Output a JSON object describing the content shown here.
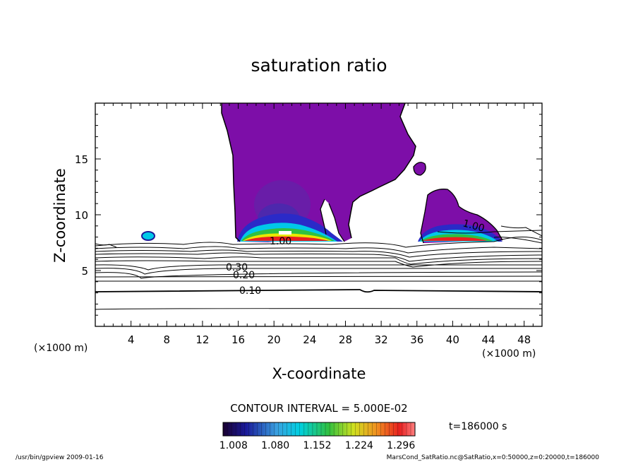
{
  "chart_data": {
    "type": "heatmap",
    "title": "saturation ratio",
    "xlabel": "X-coordinate",
    "ylabel": "Z-coordinate",
    "x_unit": "(×1000 m)",
    "x_unit_right": "(×1000 m)",
    "x_ticks": [
      "4",
      "8",
      "12",
      "16",
      "20",
      "24",
      "28",
      "32",
      "36",
      "40",
      "44",
      "48"
    ],
    "x_tick_values": [
      4,
      8,
      12,
      16,
      20,
      24,
      28,
      32,
      36,
      40,
      44,
      48
    ],
    "y_ticks": [
      "5",
      "10",
      "15"
    ],
    "y_tick_values": [
      5,
      10,
      15
    ],
    "xlim": [
      0,
      50
    ],
    "ylim": [
      0,
      20
    ],
    "contour_interval_text": "CONTOUR INTERVAL = 5.000E-02",
    "contour_labels": [
      {
        "text": "0.10",
        "x": 17.5,
        "y": 3.2
      },
      {
        "text": "0.20",
        "x": 16.5,
        "y": 4.5
      },
      {
        "text": "0.30",
        "x": 15.5,
        "y": 5.2
      },
      {
        "text": "1.00",
        "x": 20.5,
        "y": 7.6
      },
      {
        "text": "1.00",
        "x": 42.3,
        "y": 9.2
      }
    ],
    "colorbar": {
      "labels": [
        "1.008",
        "1.080",
        "1.152",
        "1.224",
        "1.296"
      ],
      "values": [
        1.008,
        1.08,
        1.152,
        1.224,
        1.296
      ],
      "range": [
        0.99,
        1.32
      ]
    },
    "time_text": "t=186000 s"
  },
  "footer": {
    "left": "/usr/bin/gpview   2009-01-16",
    "right": "MarsCond_SatRatio.nc@SatRatio,x=0:50000,z=0:20000,t=186000"
  },
  "colors": {
    "supersaturated_fill": "#7d0ea8",
    "deep_blue": "#1a1a9a",
    "cyan": "#00c8e8",
    "green": "#20c040",
    "yellow": "#e8e800",
    "red": "#e82020"
  }
}
